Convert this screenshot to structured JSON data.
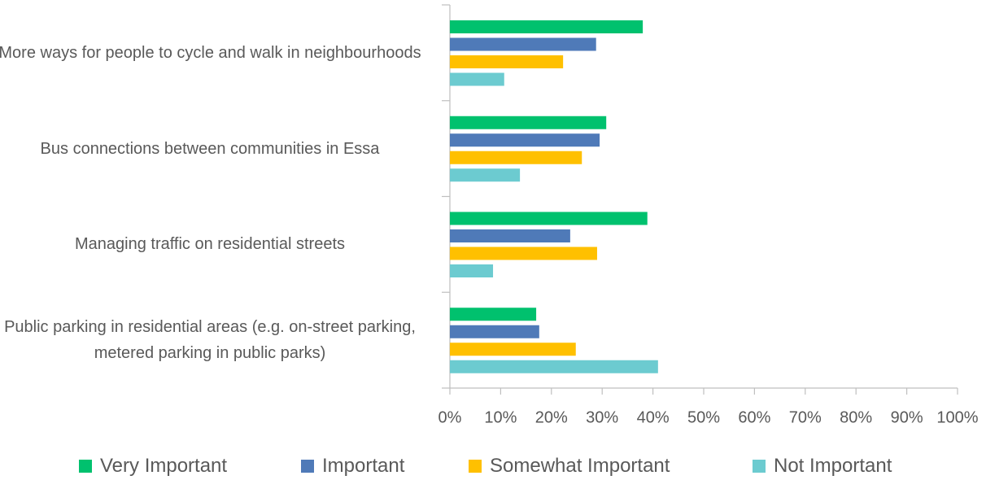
{
  "chart_data": {
    "type": "bar",
    "orientation": "horizontal",
    "categories": [
      "More ways for people to cycle and walk in neighbourhoods",
      "Bus connections between communities in Essa",
      "Managing traffic on residential streets",
      "Public parking in residential areas (e.g. on-street parking, metered parking in public parks)"
    ],
    "series": [
      {
        "name": "Very Important",
        "color": "#00c16e",
        "values": [
          38.0,
          30.8,
          38.9,
          17.0
        ]
      },
      {
        "name": "Important",
        "color": "#4f7ab8",
        "values": [
          28.8,
          29.5,
          23.7,
          17.6
        ]
      },
      {
        "name": "Somewhat Important",
        "color": "#ffc000",
        "values": [
          22.3,
          26.0,
          29.0,
          24.8
        ]
      },
      {
        "name": "Not Important",
        "color": "#6ccbd0",
        "values": [
          10.7,
          13.8,
          8.5,
          41.0
        ]
      }
    ],
    "xlim": [
      0,
      100
    ],
    "xticks": [
      {
        "value": 0,
        "label": "0%"
      },
      {
        "value": 10,
        "label": "10%"
      },
      {
        "value": 20,
        "label": "20%"
      },
      {
        "value": 30,
        "label": "30%"
      },
      {
        "value": 40,
        "label": "40%"
      },
      {
        "value": 50,
        "label": "50%"
      },
      {
        "value": 60,
        "label": "60%"
      },
      {
        "value": 70,
        "label": "70%"
      },
      {
        "value": 80,
        "label": "80%"
      },
      {
        "value": 90,
        "label": "90%"
      },
      {
        "value": 100,
        "label": "100%"
      }
    ],
    "legend": "bottom",
    "grid": false
  }
}
